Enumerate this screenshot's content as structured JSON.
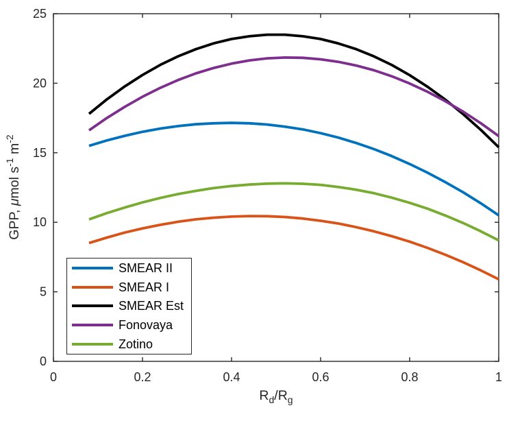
{
  "figure": {
    "background": "#ffffff",
    "axis_color": "#262626",
    "tick_label_font_px": 18,
    "axis_label_font_px": 19.5
  },
  "chart_data": {
    "type": "line",
    "title": "",
    "xlabel": "R_d/R_g",
    "ylabel": "GPP, μmol s^{-1} m^{-2}",
    "xlabel_parts": {
      "p1": "R",
      "sub1": "d",
      "p2": "/R",
      "sub2": "g"
    },
    "ylabel_parts": {
      "p1": "GPP, ",
      "mu": "μ",
      "p2": "mol s",
      "sup1": "-1",
      "p3": " m",
      "sup2": "-2"
    },
    "xlim": [
      0,
      1
    ],
    "ylim": [
      0,
      25
    ],
    "xticks": [
      0,
      0.2,
      0.4,
      0.6,
      0.8,
      1
    ],
    "xtick_labels": [
      "0",
      "0.2",
      "0.4",
      "0.6",
      "0.8",
      "1"
    ],
    "yticks": [
      0,
      5,
      10,
      15,
      20,
      25
    ],
    "ytick_labels": [
      "0",
      "5",
      "10",
      "15",
      "20",
      "25"
    ],
    "grid": false,
    "box": true,
    "legend_position": "southwest",
    "line_width": 3.8,
    "x": [
      0.08,
      0.12,
      0.16,
      0.2,
      0.24,
      0.28,
      0.32,
      0.36,
      0.4,
      0.44,
      0.48,
      0.52,
      0.56,
      0.6,
      0.64,
      0.68,
      0.72,
      0.76,
      0.8,
      0.84,
      0.88,
      0.92,
      0.96,
      1.0
    ],
    "series": [
      {
        "name": "SMEAR II",
        "color": "#0072BD",
        "values": [
          15.5,
          15.89,
          16.22,
          16.51,
          16.74,
          16.92,
          17.05,
          17.12,
          17.15,
          17.12,
          17.03,
          16.88,
          16.68,
          16.41,
          16.09,
          15.7,
          15.26,
          14.76,
          14.19,
          13.57,
          12.89,
          12.16,
          11.36,
          10.5
        ]
      },
      {
        "name": "SMEAR I",
        "color": "#D95319",
        "values": [
          8.51,
          8.9,
          9.26,
          9.56,
          9.82,
          10.04,
          10.21,
          10.33,
          10.41,
          10.45,
          10.44,
          10.38,
          10.27,
          10.11,
          9.91,
          9.65,
          9.35,
          9.0,
          8.61,
          8.16,
          7.67,
          7.13,
          6.54,
          5.9
        ]
      },
      {
        "name": "SMEAR Est",
        "color": "#000000",
        "values": [
          17.8,
          18.84,
          19.77,
          20.59,
          21.32,
          21.94,
          22.45,
          22.87,
          23.18,
          23.38,
          23.49,
          23.49,
          23.38,
          23.18,
          22.86,
          22.45,
          21.93,
          21.31,
          20.58,
          19.75,
          18.82,
          17.78,
          16.64,
          15.4
        ]
      },
      {
        "name": "Fonovaya",
        "color": "#7E2F8E",
        "values": [
          16.61,
          17.5,
          18.3,
          19.03,
          19.67,
          20.23,
          20.71,
          21.1,
          21.41,
          21.64,
          21.79,
          21.85,
          21.83,
          21.72,
          21.54,
          21.27,
          20.93,
          20.5,
          19.98,
          19.39,
          18.71,
          17.96,
          17.12,
          16.2
        ]
      },
      {
        "name": "Zotino",
        "color": "#77AC30",
        "values": [
          10.21,
          10.66,
          11.06,
          11.43,
          11.75,
          12.03,
          12.26,
          12.46,
          12.61,
          12.71,
          12.78,
          12.8,
          12.77,
          12.69,
          12.54,
          12.34,
          12.09,
          11.77,
          11.4,
          10.98,
          10.49,
          9.95,
          9.35,
          8.7
        ]
      }
    ],
    "legend_entries": [
      "SMEAR II",
      "SMEAR I",
      "SMEAR Est",
      "Fonovaya",
      "Zotino"
    ]
  }
}
